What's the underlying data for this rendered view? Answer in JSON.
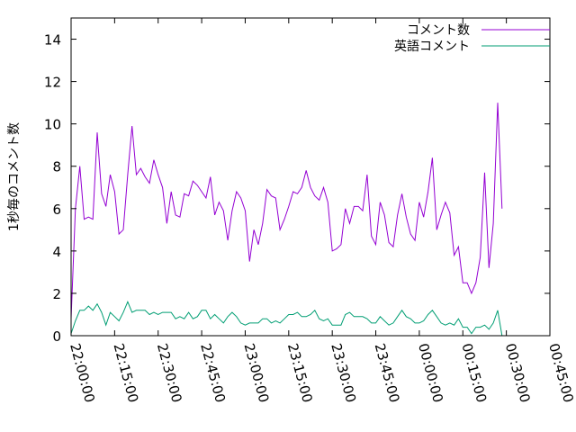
{
  "chart_data": {
    "type": "line",
    "title": "",
    "xlabel": "",
    "ylabel": "1秒毎のコメント数",
    "ylim": [
      0,
      15
    ],
    "xlim": [
      "22:00:00",
      "00:45:00"
    ],
    "x_ticks": [
      "22:00:00",
      "22:15:00",
      "22:30:00",
      "22:45:00",
      "23:00:00",
      "23:15:00",
      "23:30:00",
      "23:45:00",
      "00:00:00",
      "00:15:00",
      "00:30:00",
      "00:45:00"
    ],
    "y_ticks": [
      "0",
      "2",
      "4",
      "6",
      "8",
      "10",
      "12",
      "14"
    ],
    "grid": false,
    "legend_position": "top-right",
    "x_interval_min": 1.5,
    "series": [
      {
        "name": "コメント数",
        "color": "#9400d3",
        "values": [
          0.8,
          6.0,
          8.0,
          5.5,
          5.6,
          5.5,
          9.6,
          6.7,
          6.1,
          7.6,
          6.8,
          4.8,
          5.0,
          7.6,
          9.9,
          7.6,
          7.9,
          7.5,
          7.2,
          8.3,
          7.6,
          7.0,
          5.3,
          6.8,
          5.7,
          5.6,
          6.7,
          6.6,
          7.3,
          7.1,
          6.8,
          6.5,
          7.5,
          5.7,
          6.3,
          5.9,
          4.5,
          5.9,
          6.8,
          6.5,
          5.9,
          3.5,
          5.0,
          4.3,
          5.3,
          6.9,
          6.6,
          6.5,
          5.0,
          5.5,
          6.1,
          6.8,
          6.7,
          7.0,
          7.8,
          7.0,
          6.6,
          6.4,
          7.0,
          6.3,
          4.0,
          4.1,
          4.3,
          6.0,
          5.3,
          6.1,
          6.1,
          5.9,
          7.6,
          4.7,
          4.3,
          6.3,
          5.7,
          4.4,
          4.2,
          5.7,
          6.7,
          5.6,
          4.8,
          4.5,
          6.3,
          5.6,
          6.8,
          8.4,
          5.0,
          5.7,
          6.3,
          5.8,
          3.8,
          4.2,
          2.5,
          2.5,
          2.0,
          2.5,
          3.7,
          7.7,
          3.2,
          5.3,
          11.0,
          6.0
        ]
      },
      {
        "name": "英語コメント",
        "color": "#009e73",
        "values": [
          0.1,
          0.7,
          1.2,
          1.2,
          1.4,
          1.2,
          1.5,
          1.1,
          0.5,
          1.1,
          0.9,
          0.7,
          1.1,
          1.6,
          1.1,
          1.2,
          1.2,
          1.2,
          1.0,
          1.1,
          1.0,
          1.1,
          1.1,
          1.1,
          0.8,
          0.9,
          0.8,
          1.1,
          0.8,
          0.9,
          1.2,
          1.2,
          0.8,
          1.0,
          0.8,
          0.6,
          0.9,
          1.1,
          0.9,
          0.6,
          0.5,
          0.6,
          0.6,
          0.6,
          0.8,
          0.8,
          0.6,
          0.7,
          0.6,
          0.8,
          1.0,
          1.0,
          1.1,
          0.9,
          0.9,
          1.0,
          1.2,
          0.8,
          0.7,
          0.8,
          0.5,
          0.5,
          0.5,
          1.0,
          1.1,
          0.9,
          0.9,
          0.9,
          0.8,
          0.6,
          0.6,
          0.9,
          0.7,
          0.5,
          0.6,
          0.9,
          1.2,
          0.9,
          0.8,
          0.6,
          0.6,
          0.7,
          1.0,
          1.2,
          0.9,
          0.6,
          0.5,
          0.6,
          0.5,
          0.8,
          0.4,
          0.4,
          0.1,
          0.4,
          0.4,
          0.5,
          0.3,
          0.6,
          1.2,
          0.0
        ]
      }
    ]
  }
}
